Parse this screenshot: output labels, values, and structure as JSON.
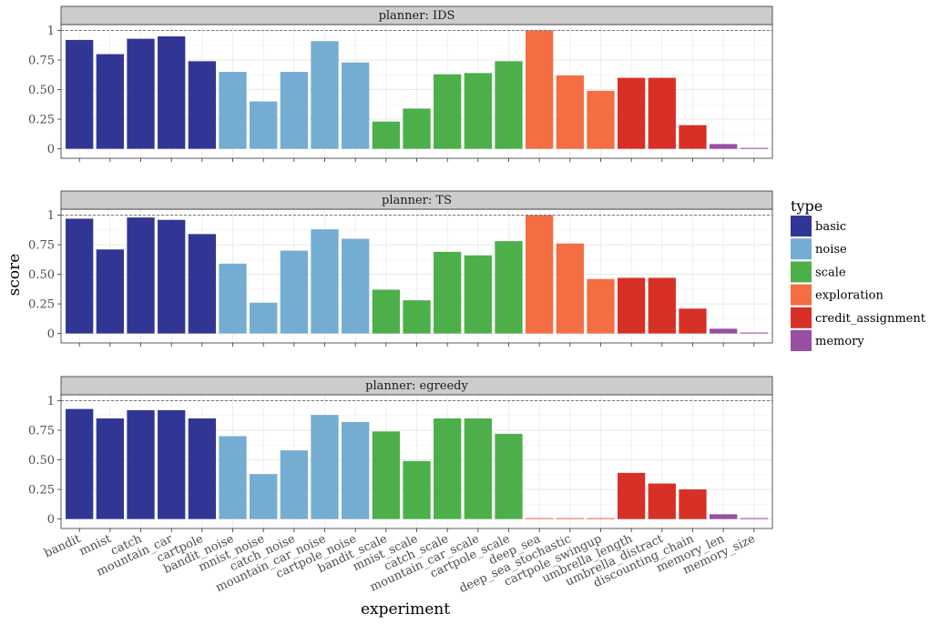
{
  "chart_data": {
    "type": "bar",
    "facet_label_prefix": "planner: ",
    "xlabel": "experiment",
    "ylabel": "score",
    "ylim": [
      0,
      1
    ],
    "yticks": [
      0,
      0.25,
      0.5,
      0.75,
      1
    ],
    "ytick_labels": [
      "0",
      "0.25",
      "0.50",
      "0.75",
      "1"
    ],
    "reference_line": 1,
    "legend_title": "type",
    "legend_position": "right",
    "types": [
      {
        "name": "basic",
        "color": "#313695"
      },
      {
        "name": "noise",
        "color": "#74add1"
      },
      {
        "name": "scale",
        "color": "#4daf4a"
      },
      {
        "name": "exploration",
        "color": "#f46d43"
      },
      {
        "name": "credit_assignment",
        "color": "#d73027"
      },
      {
        "name": "memory",
        "color": "#984ea3"
      }
    ],
    "categories": [
      "bandit",
      "mnist",
      "catch",
      "mountain_car",
      "cartpole",
      "bandit_noise",
      "mnist_noise",
      "catch_noise",
      "mountain_car_noise",
      "cartpole_noise",
      "bandit_scale",
      "mnist_scale",
      "catch_scale",
      "mountain_car_scale",
      "cartpole_scale",
      "deep_sea",
      "deep_sea_stochastic",
      "cartpole_swingup",
      "umbrella_length",
      "umbrella_distract",
      "discounting_chain",
      "memory_len",
      "memory_size"
    ],
    "category_types": [
      "basic",
      "basic",
      "basic",
      "basic",
      "basic",
      "noise",
      "noise",
      "noise",
      "noise",
      "noise",
      "scale",
      "scale",
      "scale",
      "scale",
      "scale",
      "exploration",
      "exploration",
      "exploration",
      "credit_assignment",
      "credit_assignment",
      "credit_assignment",
      "memory",
      "memory"
    ],
    "facets": [
      {
        "planner": "IDS",
        "values": [
          0.92,
          0.8,
          0.93,
          0.95,
          0.74,
          0.65,
          0.4,
          0.65,
          0.91,
          0.73,
          0.23,
          0.34,
          0.63,
          0.64,
          0.74,
          1.0,
          0.62,
          0.49,
          0.6,
          0.6,
          0.2,
          0.04,
          0.0
        ]
      },
      {
        "planner": "TS",
        "values": [
          0.97,
          0.71,
          0.98,
          0.96,
          0.84,
          0.59,
          0.26,
          0.7,
          0.88,
          0.8,
          0.37,
          0.28,
          0.69,
          0.66,
          0.78,
          1.0,
          0.76,
          0.46,
          0.47,
          0.47,
          0.21,
          0.04,
          0.0
        ]
      },
      {
        "planner": "egreedy",
        "values": [
          0.93,
          0.85,
          0.92,
          0.92,
          0.85,
          0.7,
          0.38,
          0.58,
          0.88,
          0.82,
          0.74,
          0.49,
          0.85,
          0.85,
          0.72,
          0.0,
          0.0,
          0.0,
          0.39,
          0.3,
          0.25,
          0.04,
          0.0
        ]
      }
    ]
  }
}
